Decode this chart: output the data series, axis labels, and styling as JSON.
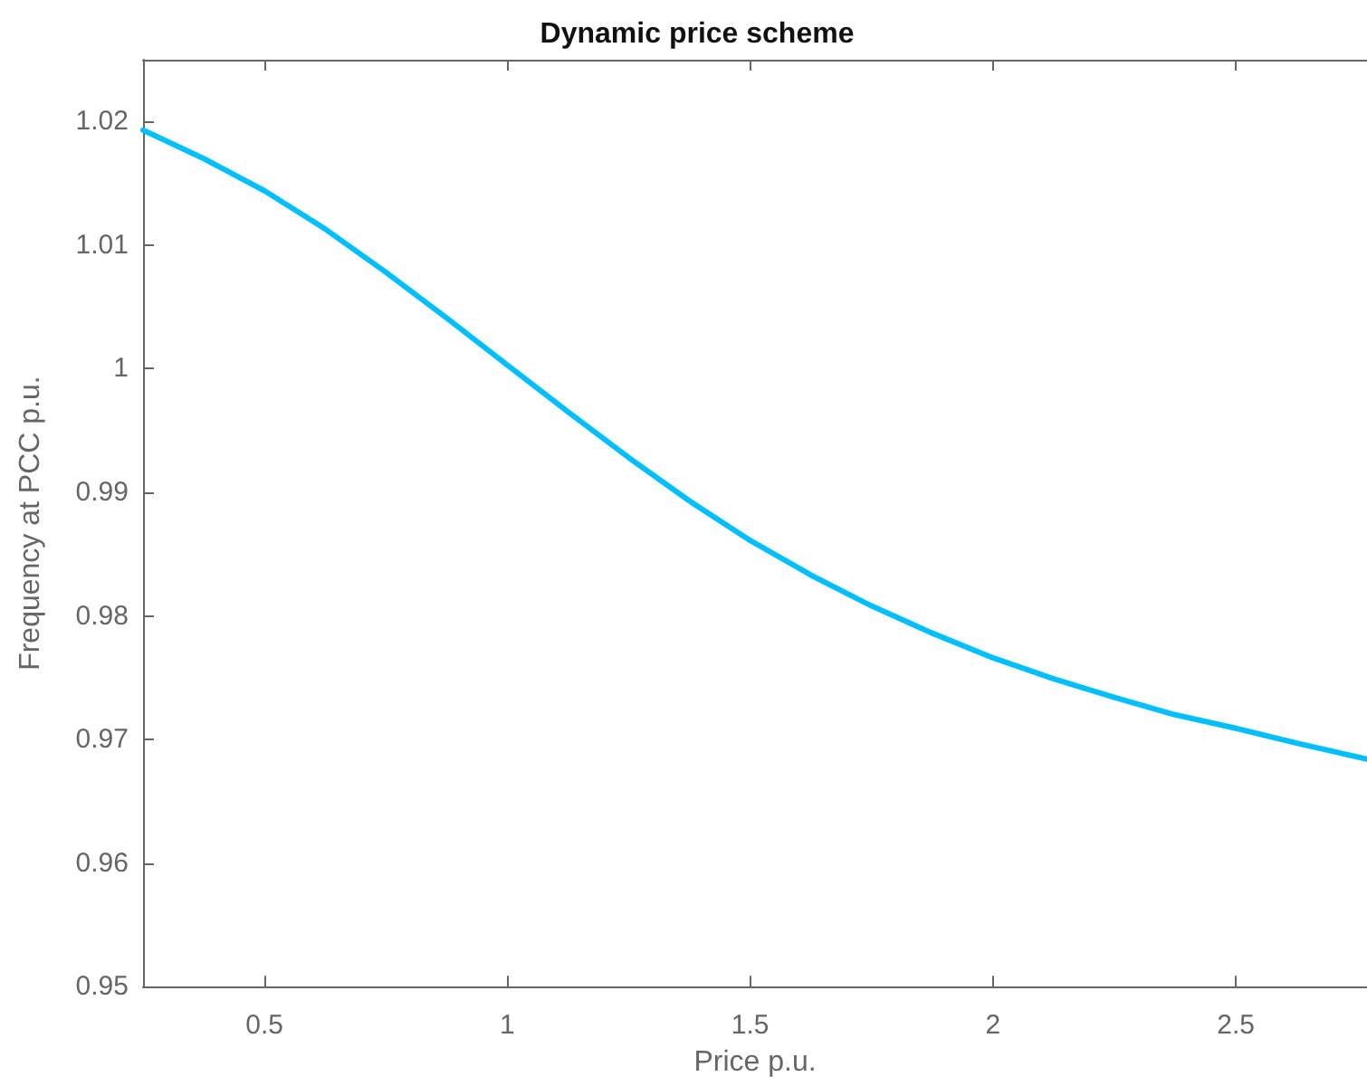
{
  "chart_data": {
    "type": "line",
    "title": "Dynamic price scheme",
    "xlabel": "Price p.u.",
    "ylabel": "Frequency at PCC p.u.",
    "x": [
      0.25,
      0.375,
      0.5,
      0.625,
      0.75,
      0.875,
      1.0,
      1.125,
      1.25,
      1.375,
      1.5,
      1.625,
      1.75,
      1.875,
      2.0,
      2.125,
      2.25,
      2.375,
      2.5,
      2.625,
      2.77
    ],
    "series": [
      {
        "color": "#00bfff",
        "values": [
          1.0193,
          1.017,
          1.0144,
          1.0113,
          1.0078,
          1.0041,
          1.0003,
          0.9965,
          0.9928,
          0.9893,
          0.9861,
          0.9833,
          0.9808,
          0.9786,
          0.9766,
          0.9749,
          0.9734,
          0.972,
          0.9709,
          0.9697,
          0.9684
        ]
      }
    ],
    "xlim": [
      0.25,
      2.77
    ],
    "xticks": [
      0.5,
      1,
      1.5,
      2,
      2.5
    ],
    "ylim": [
      0.95,
      1.025
    ],
    "yticks": [
      0.95,
      0.96,
      0.97,
      0.98,
      0.99,
      1,
      1.01,
      1.02
    ],
    "grid": false,
    "marker": "none",
    "line_style": "solid"
  }
}
